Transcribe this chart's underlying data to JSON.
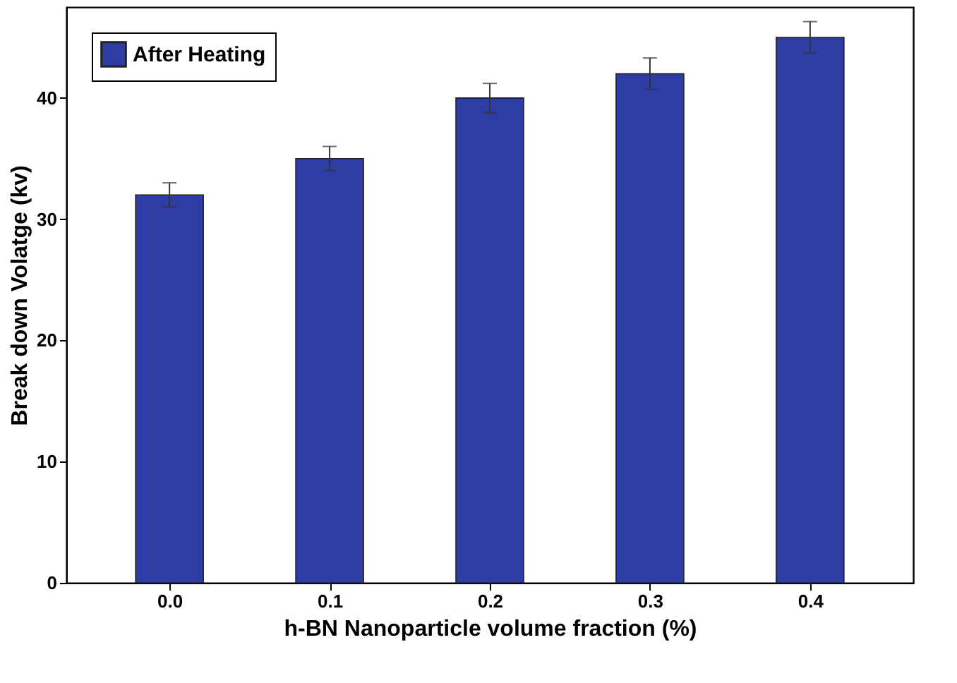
{
  "chart_data": {
    "type": "bar",
    "xlabel": "h-BN Nanoparticle volume fraction (%)",
    "ylabel": "Break down Volatge (kv)",
    "categories": [
      "0.0",
      "0.1",
      "0.2",
      "0.3",
      "0.4"
    ],
    "series": [
      {
        "name": "After Heating",
        "color": "#2e3da6",
        "values": [
          32,
          35,
          40,
          42,
          45
        ],
        "errors": [
          1.0,
          1.0,
          1.2,
          1.3,
          1.3
        ]
      }
    ],
    "ylim": [
      0,
      47.5
    ],
    "yticks": [
      0,
      10,
      20,
      30,
      40
    ],
    "grid": false,
    "legend": "top left"
  }
}
